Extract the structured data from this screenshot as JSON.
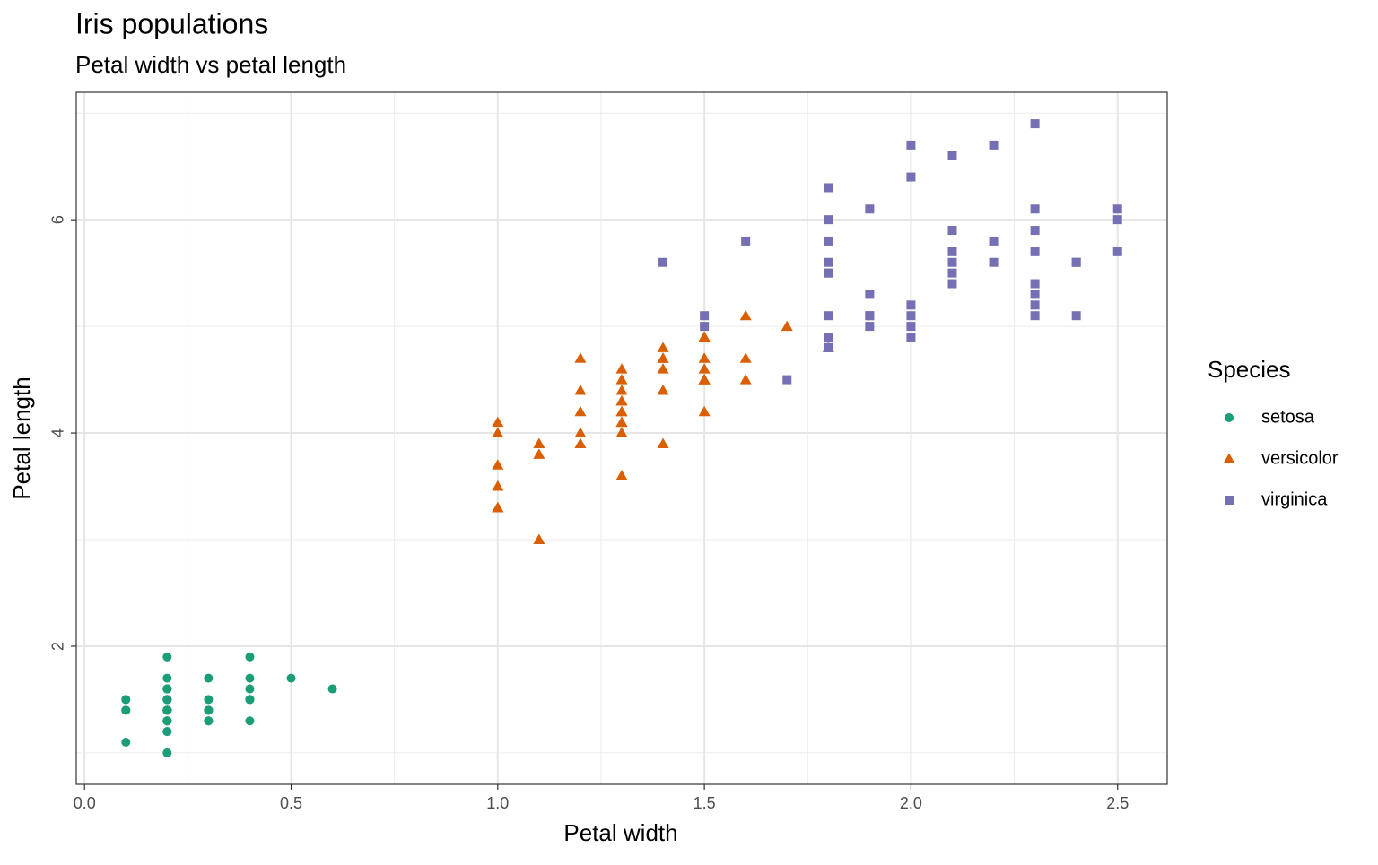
{
  "chart_data": {
    "type": "scatter",
    "title": "Iris populations",
    "subtitle": "Petal width vs petal length",
    "xlabel": "Petal width",
    "ylabel": "Petal length",
    "legend_title": "Species",
    "legend": "right",
    "grid": true,
    "xlim": [
      -0.02,
      2.62
    ],
    "ylim": [
      0.705,
      7.195
    ],
    "xticks": [
      {
        "value": 0,
        "label": "0.0"
      },
      0.5,
      {
        "value": 1,
        "label": "1.0"
      },
      1.5,
      {
        "value": 2,
        "label": "2.0"
      },
      2.5
    ],
    "yticks": [
      2,
      4,
      6
    ],
    "xminor": [
      0.25,
      0.75,
      1.25,
      1.75,
      2.25
    ],
    "yminor": [
      1,
      3,
      5,
      7
    ],
    "series": [
      {
        "name": "setosa",
        "color": "#1b9e77",
        "shape": "circle",
        "x": [
          0.2,
          0.2,
          0.2,
          0.2,
          0.2,
          0.4,
          0.3,
          0.2,
          0.2,
          0.1,
          0.2,
          0.2,
          0.1,
          0.1,
          0.2,
          0.4,
          0.4,
          0.3,
          0.3,
          0.3,
          0.2,
          0.4,
          0.2,
          0.5,
          0.2,
          0.2,
          0.4,
          0.2,
          0.2,
          0.2,
          0.2,
          0.4,
          0.1,
          0.2,
          0.2,
          0.2,
          0.2,
          0.1,
          0.2,
          0.2,
          0.3,
          0.3,
          0.2,
          0.6,
          0.4,
          0.3,
          0.2,
          0.2,
          0.2,
          0.2
        ],
        "values": [
          1.4,
          1.4,
          1.3,
          1.5,
          1.4,
          1.7,
          1.4,
          1.5,
          1.4,
          1.5,
          1.5,
          1.6,
          1.4,
          1.1,
          1.2,
          1.5,
          1.3,
          1.4,
          1.7,
          1.5,
          1.7,
          1.5,
          1.0,
          1.7,
          1.9,
          1.6,
          1.6,
          1.5,
          1.4,
          1.6,
          1.6,
          1.5,
          1.5,
          1.4,
          1.5,
          1.2,
          1.3,
          1.4,
          1.3,
          1.5,
          1.3,
          1.3,
          1.3,
          1.6,
          1.9,
          1.4,
          1.6,
          1.4,
          1.5,
          1.4
        ]
      },
      {
        "name": "versicolor",
        "color": "#d95f02",
        "shape": "triangle",
        "x": [
          1.4,
          1.5,
          1.5,
          1.3,
          1.5,
          1.3,
          1.6,
          1.0,
          1.3,
          1.4,
          1.0,
          1.5,
          1.0,
          1.4,
          1.3,
          1.4,
          1.5,
          1.0,
          1.5,
          1.1,
          1.8,
          1.3,
          1.5,
          1.2,
          1.3,
          1.4,
          1.4,
          1.7,
          1.5,
          1.0,
          1.1,
          1.0,
          1.2,
          1.6,
          1.5,
          1.6,
          1.5,
          1.3,
          1.3,
          1.3,
          1.2,
          1.4,
          1.2,
          1.0,
          1.3,
          1.2,
          1.3,
          1.3,
          1.1,
          1.3
        ],
        "values": [
          4.7,
          4.5,
          4.9,
          4.0,
          4.6,
          4.5,
          4.7,
          3.3,
          4.6,
          3.9,
          3.5,
          4.2,
          4.0,
          4.7,
          3.6,
          4.4,
          4.5,
          4.1,
          4.5,
          3.9,
          4.8,
          4.0,
          4.9,
          4.7,
          4.3,
          4.4,
          4.8,
          5.0,
          4.5,
          3.5,
          3.8,
          3.7,
          3.9,
          5.1,
          4.5,
          4.5,
          4.7,
          4.4,
          4.1,
          4.0,
          4.4,
          4.6,
          4.0,
          3.3,
          4.2,
          4.2,
          4.2,
          4.3,
          3.0,
          4.1
        ]
      },
      {
        "name": "virginica",
        "color": "#7570b3",
        "shape": "square",
        "x": [
          2.5,
          1.9,
          2.1,
          1.8,
          2.2,
          2.1,
          1.7,
          1.8,
          1.8,
          2.5,
          2.0,
          1.9,
          2.1,
          2.0,
          2.4,
          2.3,
          1.8,
          2.2,
          2.3,
          1.5,
          2.3,
          2.0,
          2.0,
          1.8,
          2.1,
          1.8,
          1.8,
          1.8,
          2.1,
          1.6,
          1.9,
          2.0,
          2.2,
          1.5,
          1.4,
          2.3,
          2.4,
          1.8,
          1.8,
          2.1,
          2.4,
          2.3,
          1.9,
          2.3,
          2.5,
          2.3,
          1.9,
          2.0,
          2.3,
          1.8
        ],
        "values": [
          6.0,
          5.1,
          5.9,
          5.6,
          5.8,
          6.6,
          4.5,
          6.3,
          5.8,
          6.1,
          5.1,
          5.3,
          5.5,
          5.0,
          5.1,
          5.3,
          5.5,
          6.7,
          6.9,
          5.0,
          5.7,
          4.9,
          6.7,
          4.9,
          5.7,
          6.0,
          4.8,
          4.9,
          5.6,
          5.8,
          6.1,
          6.4,
          5.6,
          5.1,
          5.6,
          6.1,
          5.6,
          5.5,
          4.8,
          5.4,
          5.6,
          5.1,
          5.1,
          5.9,
          5.7,
          5.2,
          5.0,
          5.2,
          5.4,
          5.1
        ]
      }
    ]
  }
}
